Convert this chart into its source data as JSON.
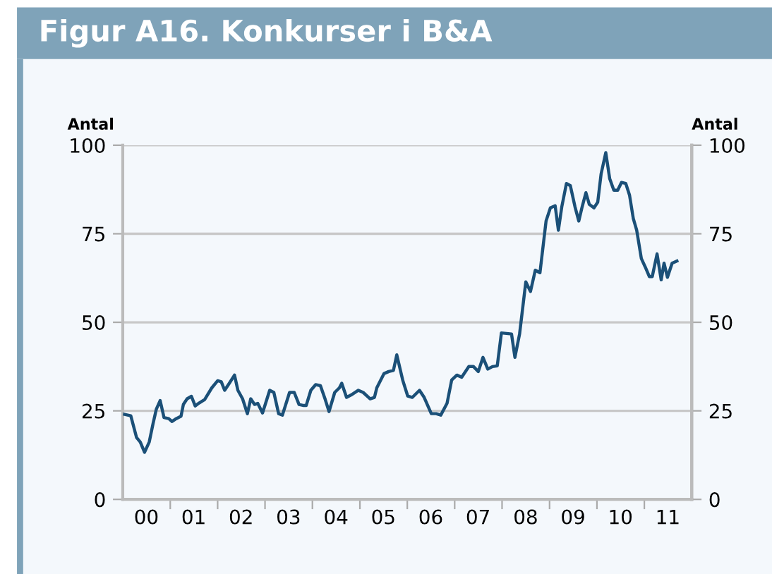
{
  "chart_data": {
    "type": "line",
    "title": "Figur A16. Konkurser i B&A",
    "ylabel": "Antal",
    "y2label": "Antal",
    "series": [
      {
        "color": "#1b5078",
        "x": [
          "2000-01-15",
          "2000-03-03",
          "2000-04-16",
          "2000-05-15",
          "2000-06-17",
          "2000-07-23",
          "2000-08-22",
          "2000-09-16",
          "2000-10-15",
          "2000-11-14",
          "2000-12-20",
          "2001-01-15",
          "2001-02-16",
          "2001-03-25",
          "2001-04-12",
          "2001-05-11",
          "2001-06-13",
          "2001-07-12",
          "2001-08-11",
          "2001-09-23",
          "2001-11-17",
          "2002-01-01",
          "2002-01-29",
          "2002-02-24",
          "2002-04-01",
          "2002-05-11",
          "2002-06-06",
          "2002-07-12",
          "2002-08-18",
          "2002-09-13",
          "2002-10-12",
          "2002-11-06",
          "2002-12-13",
          "2003-02-06",
          "2003-03-10",
          "2003-04-16",
          "2003-05-15",
          "2003-07-09",
          "2003-08-14",
          "2003-09-20",
          "2003-10-26",
          "2003-11-14",
          "2003-12-20",
          "2004-01-26",
          "2004-03-03",
          "2004-04-09",
          "2004-05-08",
          "2004-06-21",
          "2004-07-27",
          "2004-08-14",
          "2004-09-20",
          "2004-10-26",
          "2004-12-20",
          "2005-01-26",
          "2005-03-21",
          "2005-04-23",
          "2005-05-11",
          "2005-07-05",
          "2005-08-11",
          "2005-09-16",
          "2005-10-12",
          "2005-11-28",
          "2006-01-04",
          "2006-02-09",
          "2006-04-05",
          "2006-05-11",
          "2006-07-05",
          "2006-08-11",
          "2006-09-16",
          "2006-11-03",
          "2006-12-09",
          "2007-01-18",
          "2007-02-24",
          "2007-04-20",
          "2007-05-26",
          "2007-07-02",
          "2007-08-07",
          "2007-09-13",
          "2007-10-19",
          "2007-11-25",
          "2007-12-27",
          "2008-03-14",
          "2008-04-09",
          "2008-05-15",
          "2008-07-02",
          "2008-08-07",
          "2008-09-13",
          "2008-10-19",
          "2008-12-05",
          "2009-01-07",
          "2009-02-13",
          "2009-03-10",
          "2009-04-05",
          "2009-05-11",
          "2009-06-10",
          "2009-07-16",
          "2009-08-14",
          "2009-09-09",
          "2009-10-08",
          "2009-11-03",
          "2009-12-09",
          "2010-01-07",
          "2010-02-02",
          "2010-03-10",
          "2010-04-09",
          "2010-05-11",
          "2010-06-10",
          "2010-07-09",
          "2010-08-11",
          "2010-09-09",
          "2010-10-08",
          "2010-11-03",
          "2010-12-09",
          "2011-01-07",
          "2011-02-09",
          "2011-03-03",
          "2011-04-09",
          "2011-05-11",
          "2011-06-02",
          "2011-06-28",
          "2011-08-03",
          "2011-09-09"
        ],
        "values": [
          24,
          23.6,
          17.5,
          16.2,
          13.3,
          16.2,
          21.5,
          25.5,
          27.9,
          23.1,
          22.8,
          22,
          22.8,
          23.5,
          26.8,
          28.4,
          29.1,
          26.4,
          27.2,
          28.2,
          31.5,
          33.5,
          33.2,
          30.8,
          32.8,
          35.1,
          30.8,
          28.4,
          24.2,
          28.4,
          26.8,
          27.1,
          24.4,
          30.8,
          30.2,
          24.2,
          23.8,
          30.2,
          30.2,
          26.8,
          26.5,
          26.5,
          30.8,
          32.4,
          32.1,
          28.2,
          24.8,
          30.2,
          31.5,
          32.8,
          28.8,
          29.5,
          30.8,
          30.2,
          28.4,
          28.8,
          31.5,
          35.5,
          36.1,
          36.4,
          40.8,
          33.5,
          29.2,
          28.8,
          30.8,
          28.8,
          24.2,
          24.2,
          23.8,
          27.1,
          33.7,
          35.1,
          34.5,
          37.5,
          37.5,
          36.1,
          40.1,
          36.8,
          37.5,
          37.7,
          47,
          46.7,
          40.1,
          46.7,
          61.4,
          58.7,
          64.7,
          64,
          78.6,
          82.3,
          82.9,
          76,
          82.6,
          89.2,
          88.6,
          82.6,
          78.6,
          82.6,
          86.6,
          83.3,
          82.3,
          83.9,
          91.9,
          97.9,
          90.6,
          87.3,
          87.3,
          89.5,
          89.2,
          85.9,
          79.3,
          76,
          68,
          65.7,
          62.9,
          62.9,
          69.3,
          62,
          66.7,
          62.7,
          66.7,
          67.3
        ]
      }
    ],
    "xlim": [
      "2000",
      "2012"
    ],
    "xticks": [
      {
        "value": "2000-07-01",
        "label": "00"
      },
      {
        "value": "2001",
        "label": null
      },
      {
        "value": "2001-07-01",
        "label": "01"
      },
      {
        "value": "2002",
        "label": null
      },
      {
        "value": "2002-07-01",
        "label": "02"
      },
      {
        "value": "2003",
        "label": null
      },
      {
        "value": "2003-07-01",
        "label": "03"
      },
      {
        "value": "2004",
        "label": null
      },
      {
        "value": "2004-07-01",
        "label": "04"
      },
      {
        "value": "2005",
        "label": null
      },
      {
        "value": "2005-07-01",
        "label": "05"
      },
      {
        "value": "2006",
        "label": null
      },
      {
        "value": "2006-07-01",
        "label": "06"
      },
      {
        "value": "2007",
        "label": null
      },
      {
        "value": "2007-07-01",
        "label": "07"
      },
      {
        "value": "2008",
        "label": null
      },
      {
        "value": "2008-07-01",
        "label": "08"
      },
      {
        "value": "2009",
        "label": null
      },
      {
        "value": "2009-07-01",
        "label": "09"
      },
      {
        "value": "2010",
        "label": null
      },
      {
        "value": "2010-07-01",
        "label": "10"
      },
      {
        "value": "2011",
        "label": null
      },
      {
        "value": "2011-07-01",
        "label": "11"
      }
    ],
    "ylim": [
      0,
      100
    ],
    "yticks": [
      0,
      25,
      50,
      75,
      100
    ],
    "y2lim": [
      0,
      100
    ],
    "y2ticks": [
      0,
      25,
      50,
      75,
      100
    ],
    "grid": "y",
    "marker": "none",
    "line_style": "solid"
  }
}
